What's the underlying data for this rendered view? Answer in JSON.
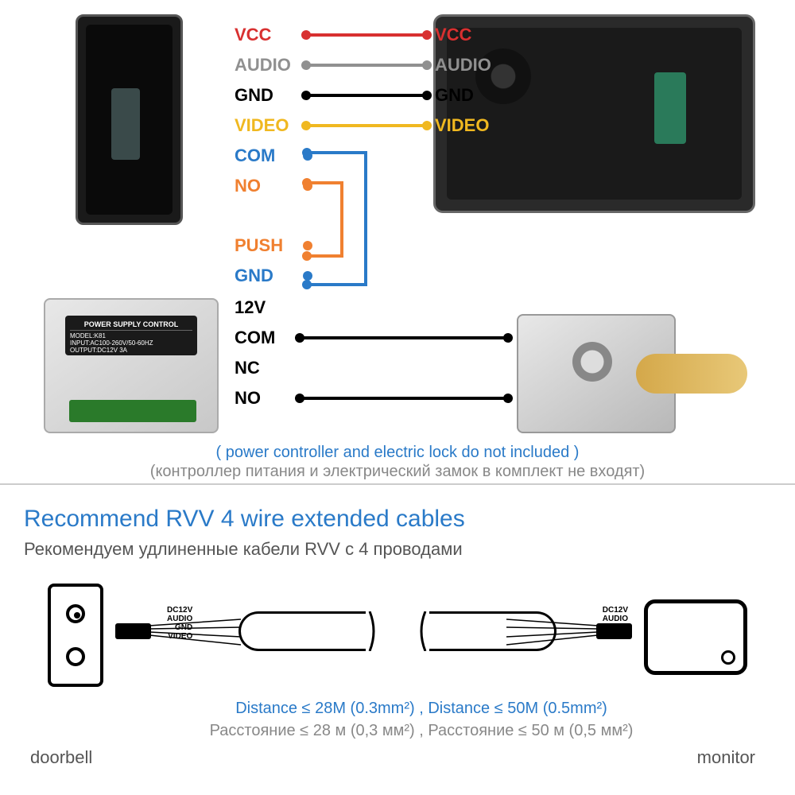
{
  "wiring": {
    "top_pairs": [
      {
        "left": "VCC",
        "right": "VCC",
        "color": "#d83030",
        "has_line": true
      },
      {
        "left": "AUDIO",
        "right": "AUDIO",
        "color": "#909090",
        "has_line": true
      },
      {
        "left": "GND",
        "right": "GND",
        "color": "#000000",
        "has_line": true
      },
      {
        "left": "VIDEO",
        "right": "VIDEO",
        "color": "#f0b820",
        "has_line": true
      },
      {
        "left": "COM",
        "right": "",
        "color": "#2a7ac8",
        "has_line": false,
        "stub": true
      },
      {
        "left": "NO",
        "right": "",
        "color": "#f08030",
        "has_line": false,
        "stub": true
      }
    ],
    "mid_pairs": [
      {
        "left": "PUSH",
        "color": "#f08030",
        "stub": true
      },
      {
        "left": "GND",
        "color": "#2a7ac8",
        "stub": true
      }
    ],
    "bottom_rows": [
      {
        "label": "12V",
        "line": false
      },
      {
        "label": "COM",
        "line": true
      },
      {
        "label": "NC",
        "line": false
      },
      {
        "label": "NO",
        "line": true
      }
    ],
    "bridge_com_gnd_color": "#2a7ac8",
    "bridge_no_push_color": "#f08030"
  },
  "notes": {
    "en": "( power controller and electric lock do not included )",
    "ru": "(контроллер питания и электрический замок в комплект не входят)"
  },
  "psu": {
    "title": "POWER SUPPLY CONTROL",
    "model": "MODEL:K81",
    "input": "INPUT:AC100-260V/50-60HZ",
    "output": "OUTPUT:DC12V 3A"
  },
  "recommend": {
    "title_en": "Recommend RVV 4 wire extended cables",
    "title_ru": "Рекомендуем удлиненные кабели RVV с 4 проводами",
    "wire_labels": [
      "DC12V",
      "AUDIO",
      "GND",
      "VIDEO"
    ],
    "dist_en": "Distance ≤ 28M (0.3mm²) ,  Distance ≤ 50M (0.5mm²)",
    "dist_ru": "Расстояние ≤ 28 м (0,3 мм²) ,  Расстояние ≤ 50 м (0,5 мм²)",
    "doorbell_label": "doorbell",
    "monitor_label": "monitor"
  }
}
